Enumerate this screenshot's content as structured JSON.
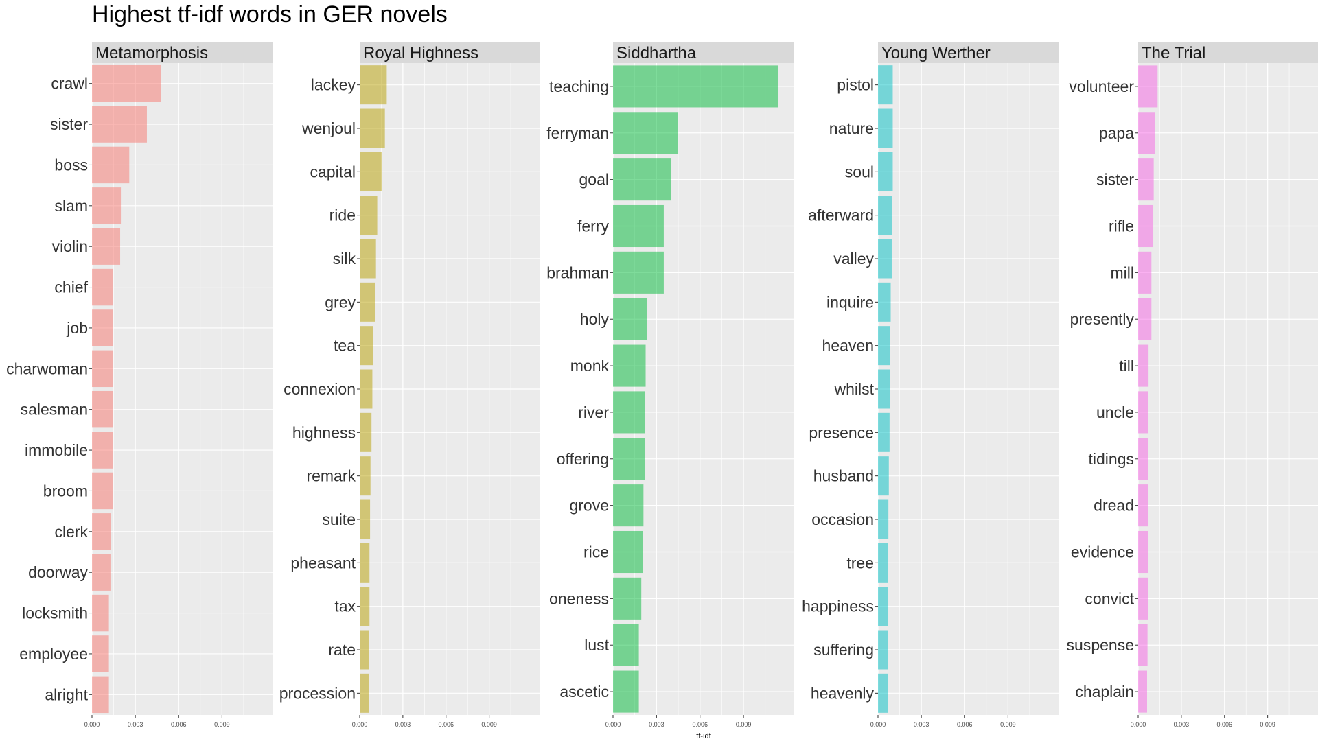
{
  "chart_data": {
    "type": "bar",
    "orientation": "horizontal",
    "title": "Highest tf-idf words in GER novels",
    "xlabel": "tf-idf",
    "ylabel": "",
    "xlim": [
      0,
      0.0125
    ],
    "x_ticks": [
      0,
      0.003,
      0.006,
      0.009
    ],
    "x_tick_labels": [
      "0.000",
      "0.003",
      "0.006",
      "0.009"
    ],
    "grid": true,
    "legend": "none",
    "panels": [
      {
        "name": "Metamorphosis",
        "color": "#F8766D",
        "categories": [
          "crawl",
          "sister",
          "boss",
          "slam",
          "violin",
          "chief",
          "job",
          "charwoman",
          "salesman",
          "immobile",
          "broom",
          "clerk",
          "doorway",
          "locksmith",
          "employee",
          "alright"
        ],
        "values": [
          0.0048,
          0.0038,
          0.00258,
          0.002,
          0.00195,
          0.00145,
          0.00145,
          0.00145,
          0.00145,
          0.00145,
          0.00145,
          0.00132,
          0.00128,
          0.00117,
          0.00117,
          0.00117
        ]
      },
      {
        "name": "Royal Highness",
        "color": "#B79F00",
        "categories": [
          "lackey",
          "wenjoul",
          "capital",
          "ride",
          "silk",
          "grey",
          "tea",
          "connexion",
          "highness",
          "remark",
          "suite",
          "pheasant",
          "tax",
          "rate",
          "procession"
        ],
        "values": [
          0.00188,
          0.00175,
          0.00152,
          0.00122,
          0.00113,
          0.00108,
          0.00095,
          0.00088,
          0.00082,
          0.00075,
          0.00072,
          0.00068,
          0.00068,
          0.00065,
          0.00065
        ]
      },
      {
        "name": "Siddhartha",
        "color": "#00BA38",
        "categories": [
          "teaching",
          "ferryman",
          "goal",
          "ferry",
          "brahman",
          "holy",
          "monk",
          "river",
          "offering",
          "grove",
          "rice",
          "oneness",
          "lust",
          "ascetic"
        ],
        "values": [
          0.0114,
          0.0045,
          0.004,
          0.0035,
          0.0035,
          0.00235,
          0.00225,
          0.0022,
          0.0022,
          0.0021,
          0.00205,
          0.00195,
          0.00178,
          0.00178
        ]
      },
      {
        "name": "Young Werther",
        "color": "#00BFC4",
        "categories": [
          "pistol",
          "nature",
          "soul",
          "afterward",
          "valley",
          "inquire",
          "heaven",
          "whilst",
          "presence",
          "husband",
          "occasion",
          "tree",
          "happiness",
          "suffering",
          "heavenly"
        ],
        "values": [
          0.00102,
          0.00102,
          0.00102,
          0.00098,
          0.00095,
          0.00088,
          0.00085,
          0.00085,
          0.0008,
          0.00075,
          0.00072,
          0.0007,
          0.0007,
          0.00068,
          0.00068
        ]
      },
      {
        "name": "The Trial",
        "color": "#F564E3",
        "categories": [
          "volunteer",
          "papa",
          "sister",
          "rifle",
          "mill",
          "presently",
          "till",
          "uncle",
          "tidings",
          "dread",
          "evidence",
          "convict",
          "suspense",
          "chaplain"
        ],
        "values": [
          0.00135,
          0.00115,
          0.00108,
          0.00105,
          0.00092,
          0.00092,
          0.00072,
          0.0007,
          0.0007,
          0.0007,
          0.00068,
          0.00068,
          0.00065,
          0.00062
        ]
      }
    ]
  }
}
